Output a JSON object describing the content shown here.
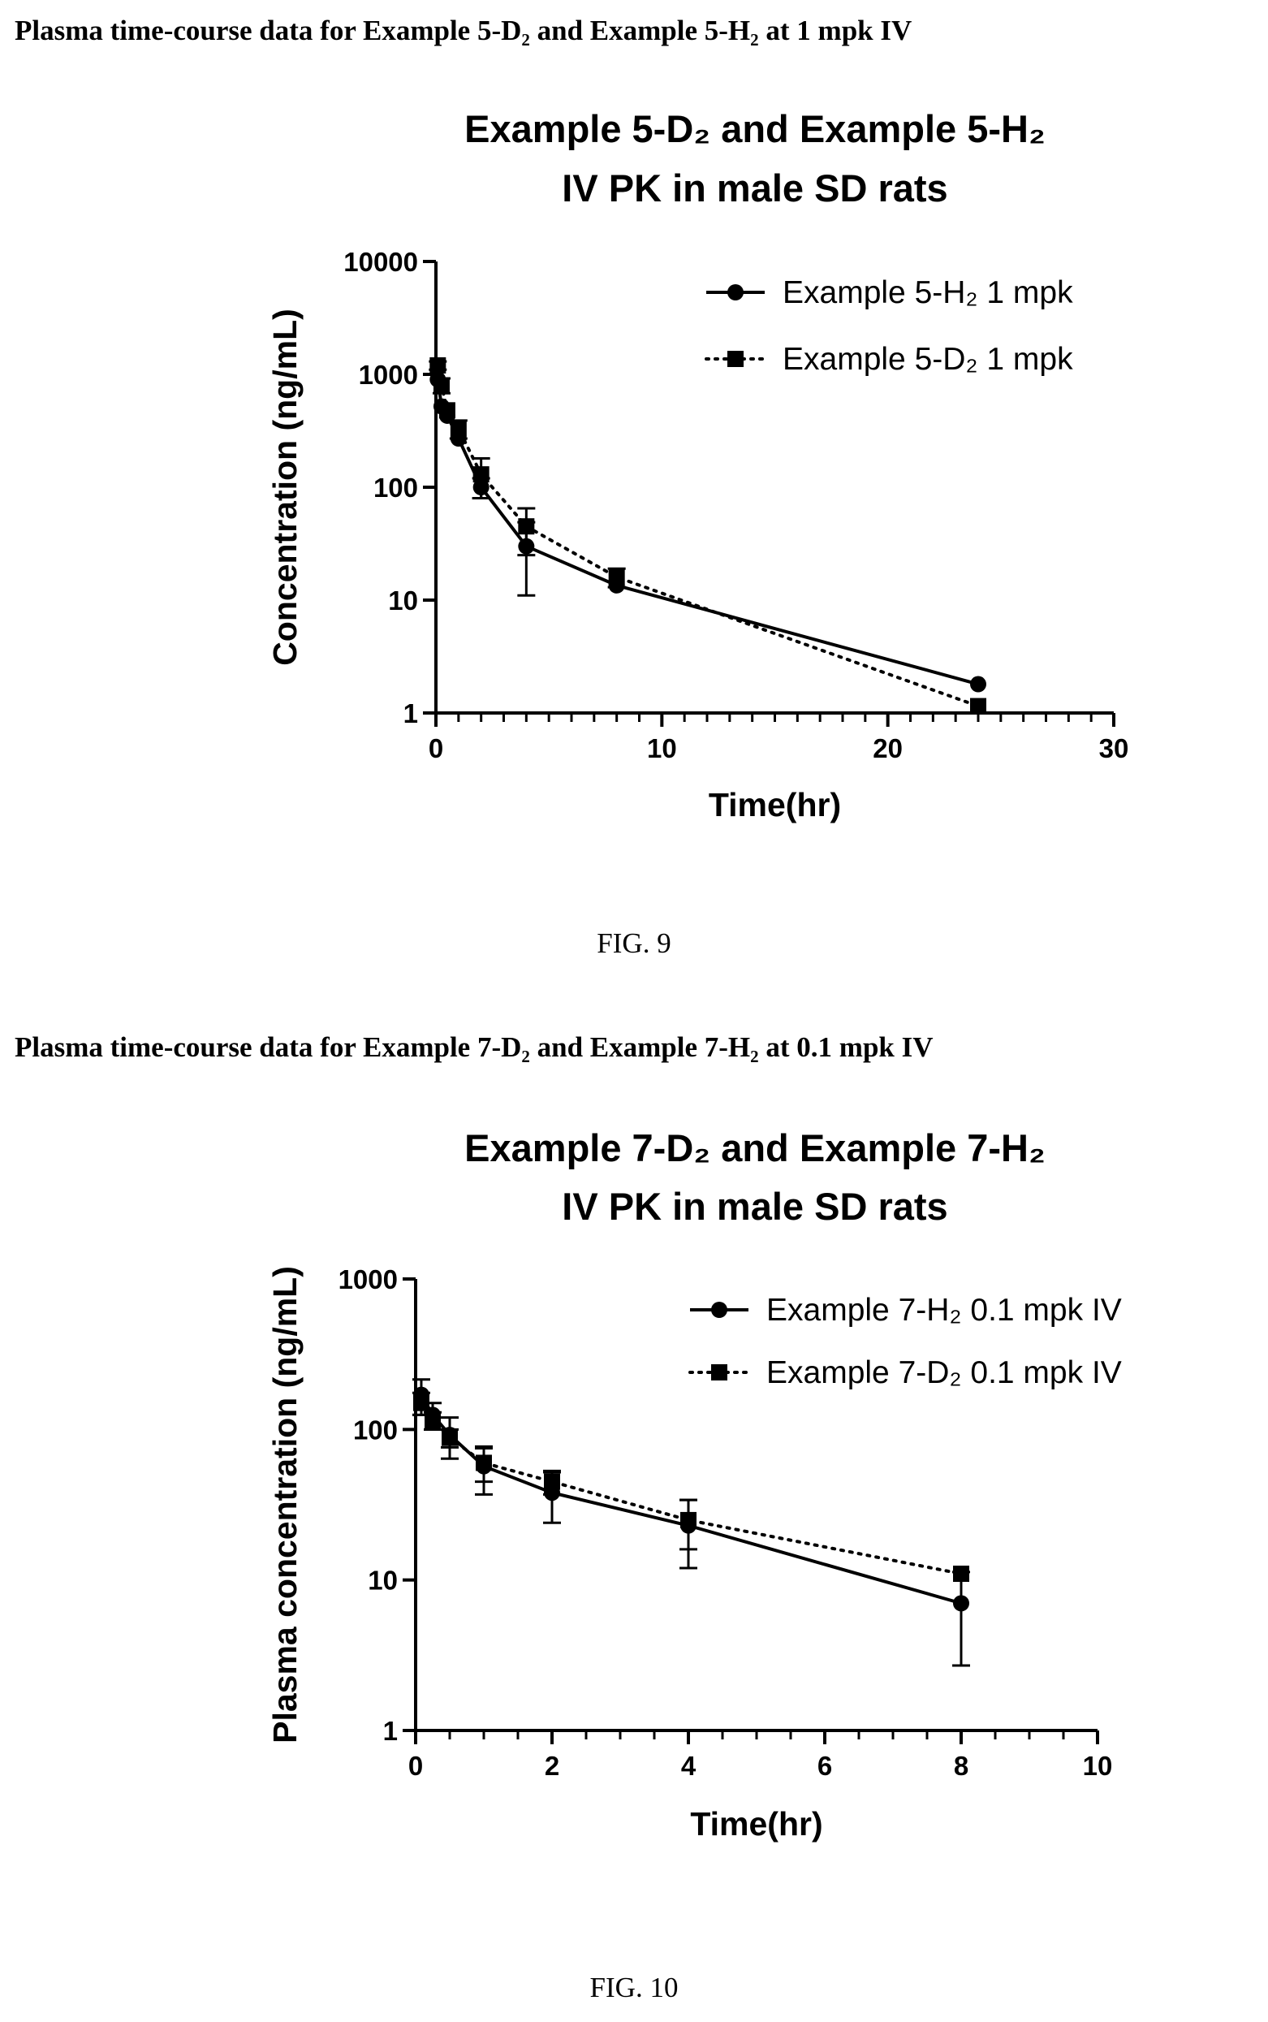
{
  "headings": {
    "fig9": "Plasma time-course data for Example 5-D₂ and Example 5-H₂ at 1 mpk IV",
    "fig10": "Plasma time-course data for Example 7-D₂ and Example 7-H₂ at 0.1 mpk IV"
  },
  "figure_labels": {
    "fig9": "FIG. 9",
    "fig10": "FIG. 10"
  },
  "chart_data": [
    {
      "type": "line",
      "title": [
        "Example 5-D₂ and Example 5-H₂",
        "IV PK in male SD rats"
      ],
      "xlabel": "Time(hr)",
      "ylabel": "Concentration (ng/mL)",
      "xlim": [
        0,
        30
      ],
      "ylim": [
        1,
        10000
      ],
      "yscale": "log",
      "x_ticks": [
        0,
        10,
        20,
        30
      ],
      "x_tick_labels": [
        "0",
        "10",
        "20",
        "30"
      ],
      "y_ticks": [
        1,
        10,
        100,
        1000,
        10000
      ],
      "y_tick_labels": [
        "1",
        "10",
        "100",
        "1000",
        "10000"
      ],
      "legend_position": "top-right",
      "series": [
        {
          "name": "Example 5-H₂ 1 mpk",
          "marker": "circle",
          "line": "solid",
          "color": "#000000",
          "x": [
            0.083,
            0.25,
            0.5,
            1,
            2,
            4,
            8,
            24
          ],
          "y": [
            900,
            520,
            430,
            270,
            100,
            30,
            13.5,
            1.8
          ],
          "err": [
            0,
            0,
            0,
            0,
            20,
            19,
            0,
            0
          ]
        },
        {
          "name": "Example 5-D₂ 1 mpk",
          "marker": "square",
          "line": "dotted",
          "color": "#000000",
          "x": [
            0.083,
            0.25,
            0.5,
            1,
            2,
            4,
            8,
            24
          ],
          "y": [
            1200,
            800,
            480,
            330,
            130,
            45,
            16,
            1.15
          ],
          "err": [
            100,
            120,
            0,
            60,
            50,
            20,
            3,
            0
          ]
        }
      ]
    },
    {
      "type": "line",
      "title": [
        "Example 7-D₂ and Example 7-H₂",
        "IV PK in male SD rats"
      ],
      "xlabel": "Time(hr)",
      "ylabel": "Plasma concentration (ng/mL)",
      "xlim": [
        0,
        10
      ],
      "ylim": [
        1,
        1000
      ],
      "yscale": "log",
      "x_ticks": [
        0,
        2,
        4,
        6,
        8,
        10
      ],
      "x_tick_labels": [
        "0",
        "2",
        "4",
        "6",
        "8",
        "10"
      ],
      "y_ticks": [
        1,
        10,
        100,
        1000
      ],
      "y_tick_labels": [
        "1",
        "10",
        "100",
        "1000"
      ],
      "legend_position": "top-right",
      "series": [
        {
          "name": "Example 7-H₂ 0.1 mpk IV",
          "marker": "circle",
          "line": "solid",
          "color": "#000000",
          "x": [
            0.083,
            0.25,
            0.5,
            1,
            2,
            4,
            8
          ],
          "y": [
            170,
            125,
            92,
            57,
            38,
            23,
            7
          ],
          "err": [
            45,
            25,
            28,
            20,
            14,
            11,
            4.3
          ]
        },
        {
          "name": "Example 7-D₂ 0.1 mpk IV",
          "marker": "square",
          "line": "dotted",
          "color": "#000000",
          "x": [
            0.083,
            0.25,
            0.5,
            1,
            2,
            4,
            8
          ],
          "y": [
            150,
            115,
            88,
            60,
            45,
            25,
            11
          ],
          "err": [
            25,
            15,
            12,
            15,
            8,
            9,
            0
          ]
        }
      ]
    }
  ]
}
